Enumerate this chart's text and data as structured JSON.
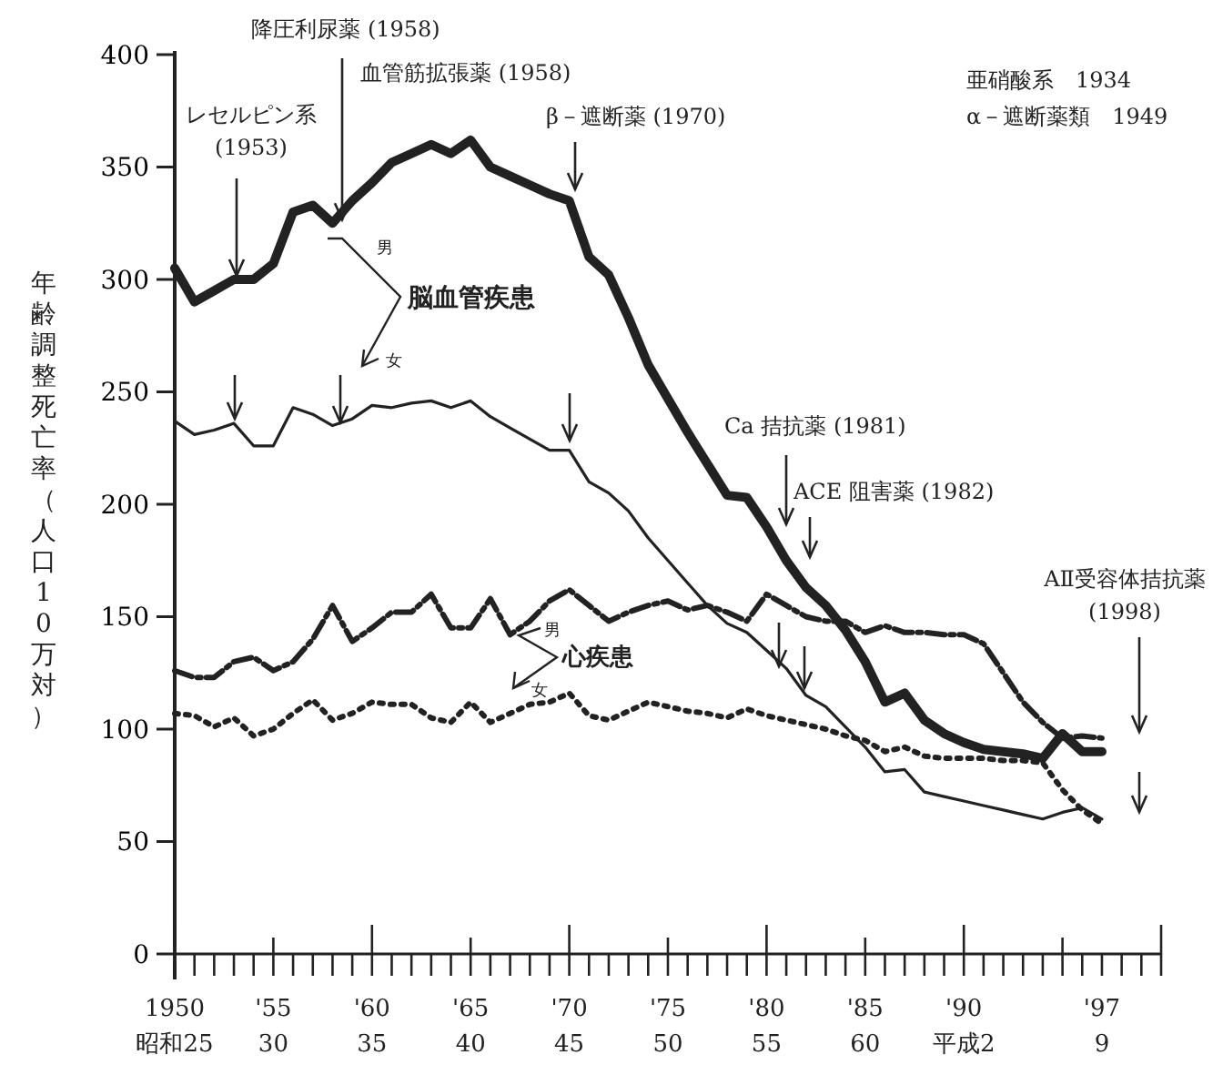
{
  "chart_data": {
    "type": "line",
    "ylabel": "年齢調整死亡率（人口10万対）",
    "categories": [
      "1950\n昭和25",
      null,
      null,
      null,
      null,
      "'55\n30",
      null,
      null,
      null,
      null,
      "'60\n35",
      null,
      null,
      null,
      null,
      "'65\n40",
      null,
      null,
      null,
      null,
      "'70\n45",
      null,
      null,
      null,
      null,
      "'75\n50",
      null,
      null,
      null,
      null,
      "'80\n55",
      null,
      null,
      null,
      null,
      "'85\n60",
      null,
      null,
      null,
      null,
      "'90\n平成2",
      null,
      null,
      null,
      null,
      null,
      null,
      "'97\n9",
      null,
      null,
      null
    ],
    "series": [
      {
        "color": "#222222",
        "line_style": "solid",
        "values": [
          305,
          290,
          295,
          300,
          300,
          307,
          330,
          333,
          325,
          335,
          343,
          352,
          356,
          360,
          356,
          362,
          350,
          346,
          342,
          338,
          335,
          310,
          302,
          283,
          262,
          247,
          232,
          218,
          204,
          203,
          190,
          175,
          163,
          155,
          144,
          130,
          112,
          116,
          104,
          98,
          94,
          91,
          90,
          89,
          87,
          98,
          90,
          90,
          null,
          null,
          null
        ]
      },
      {
        "color": "#222222",
        "line_style": "solid",
        "values": [
          237,
          231,
          233,
          236,
          226,
          226,
          243,
          240,
          235,
          238,
          244,
          243,
          245,
          246,
          243,
          246,
          239,
          234,
          229,
          224,
          224,
          210,
          205,
          197,
          185,
          175,
          165,
          155,
          147,
          143,
          135,
          127,
          115,
          110,
          101,
          92,
          81,
          82,
          72,
          70,
          68,
          66,
          64,
          62,
          60,
          63,
          65,
          60,
          null,
          null,
          null
        ]
      },
      {
        "color": "#222222",
        "line_style": "dashed",
        "values": [
          126,
          123,
          123,
          130,
          132,
          126,
          130,
          140,
          155,
          139,
          145,
          152,
          152,
          160,
          145,
          145,
          158,
          142,
          148,
          157,
          162,
          155,
          148,
          152,
          155,
          157,
          153,
          155,
          152,
          148,
          160,
          155,
          150,
          148,
          148,
          143,
          146,
          143,
          143,
          142,
          142,
          138,
          125,
          112,
          103,
          96,
          97,
          96,
          null,
          null,
          null
        ]
      },
      {
        "color": "#222222",
        "line_style": "dotted",
        "values": [
          107,
          106,
          101,
          105,
          97,
          100,
          107,
          113,
          104,
          107,
          112,
          111,
          111,
          105,
          103,
          112,
          103,
          107,
          111,
          112,
          116,
          106,
          104,
          108,
          112,
          110,
          108,
          107,
          105,
          109,
          106,
          104,
          102,
          100,
          97,
          95,
          90,
          92,
          88,
          87,
          87,
          87,
          86,
          86,
          85,
          73,
          64,
          58,
          null,
          null,
          null
        ]
      }
    ],
    "ylim": [
      0,
      400
    ],
    "yticks": [
      0,
      50,
      100,
      150,
      200,
      250,
      300,
      350,
      400
    ],
    "annotations": [
      {
        "text": "レセルピン系\n(1953)",
        "y": 300
      },
      {
        "text": "降圧利尿薬 (1958)",
        "y": 325
      },
      "血管筋拡張薬 (1958)",
      "β－遮断薬 (1970)",
      "Ca 拮抗薬 (1981)",
      "ACE 阻害薬 (1982)",
      "AⅡ受容体拮抗薬\n(1998)",
      "亜硝酸系　1934",
      "α－遮断薬類　1949",
      "脳血管疾患",
      "男",
      "女",
      "心疾患",
      "男",
      "女"
    ]
  }
}
